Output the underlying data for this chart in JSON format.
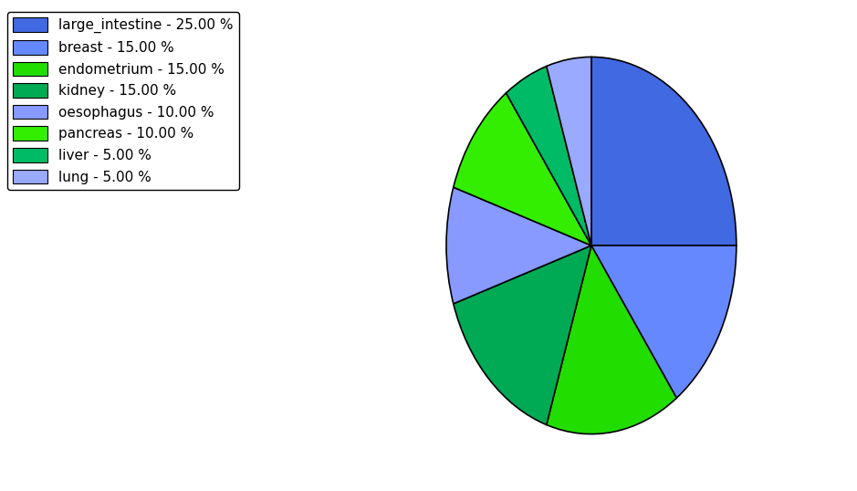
{
  "labels": [
    "large_intestine",
    "breast",
    "endometrium",
    "kidney",
    "oesophagus",
    "pancreas",
    "liver",
    "lung"
  ],
  "values": [
    25.0,
    15.0,
    15.0,
    15.0,
    10.0,
    10.0,
    5.0,
    5.0
  ],
  "colors": [
    "#4169e1",
    "#6688ff",
    "#22dd00",
    "#00aa55",
    "#8899ff",
    "#33ee00",
    "#00bb66",
    "#99aaff"
  ],
  "legend_labels": [
    "large_intestine - 25.00 %",
    "breast - 15.00 %",
    "endometrium - 15.00 %",
    "kidney - 15.00 %",
    "oesophagus - 10.00 %",
    "pancreas - 10.00 %",
    "liver - 5.00 %",
    "lung - 5.00 %"
  ],
  "startangle": 90,
  "figsize": [
    9.39,
    5.38
  ],
  "dpi": 100
}
